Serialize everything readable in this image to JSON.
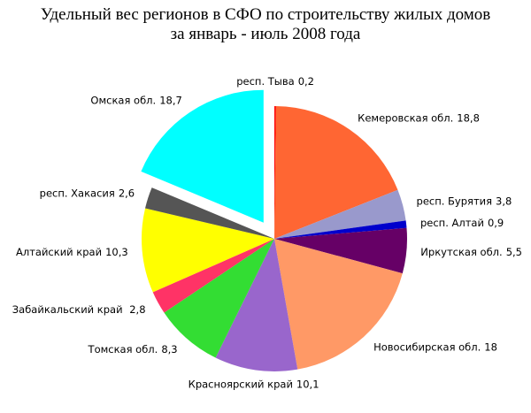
{
  "chart_data": {
    "type": "pie",
    "title": [
      "Удельный вес регионов в СФО по строительству жилых домов",
      "за январь - июль  2008 года"
    ],
    "categories": [
      "респ. Тыва",
      "Кемеровская обл.",
      "респ. Бурятия",
      "респ. Алтай",
      "Иркутская обл.",
      "Новосибирская обл.",
      "Красноярский край",
      "Томская обл.",
      "Забайкальский край ",
      "Алтайский край",
      "респ. Хакасия",
      "Омская обл."
    ],
    "values": [
      0.2,
      18.8,
      3.8,
      0.9,
      5.5,
      18,
      10.1,
      8.3,
      2.8,
      10.3,
      2.6,
      18.7
    ],
    "value_labels": [
      "0,2",
      "18,8",
      "3,8",
      "0,9",
      "5,5",
      "18",
      "10,1",
      "8,3",
      "2,8",
      "10,3",
      "2,6",
      "18,7"
    ],
    "colors": [
      "#ff0000",
      "#ff6633",
      "#9999cc",
      "#0000cc",
      "#660066",
      "#ff9966",
      "#9966cc",
      "#33dd33",
      "#ff3366",
      "#ffff00",
      "#555555",
      "#00ffff"
    ],
    "explode": [
      false,
      false,
      false,
      false,
      false,
      false,
      false,
      false,
      false,
      false,
      false,
      true
    ]
  }
}
